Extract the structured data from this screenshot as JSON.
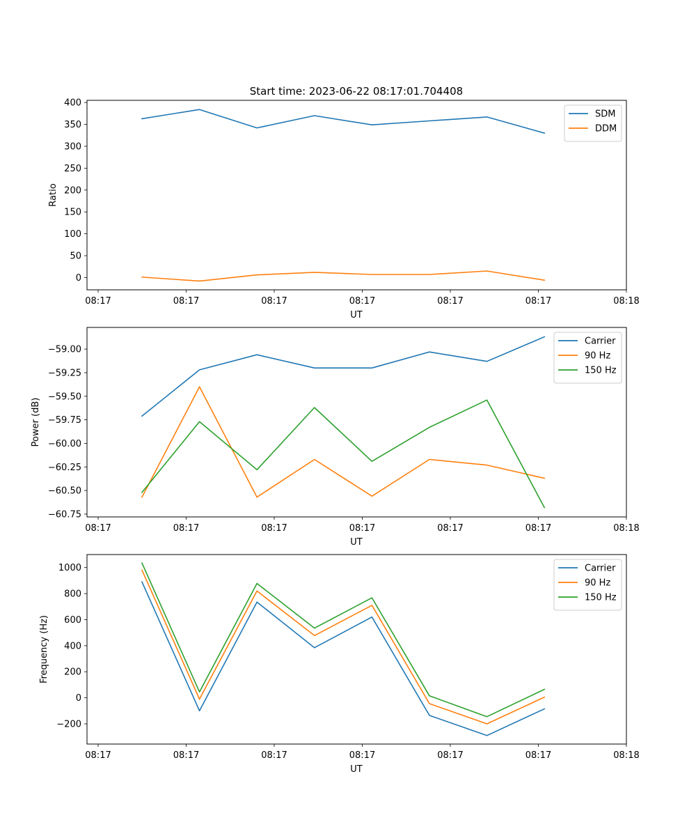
{
  "figure_title": "Start time: 2023-06-22 08:17:01.704408",
  "colors": {
    "blue": "#1f77b4",
    "orange": "#ff7f0e",
    "green": "#2ca02c"
  },
  "chart_data": [
    {
      "type": "line",
      "xlabel": "UT",
      "ylabel": "Ratio",
      "x_tick_labels": [
        "08:17",
        "08:17",
        "08:17",
        "08:17",
        "08:17",
        "08:17",
        "08:18"
      ],
      "y_ticks": [
        0,
        50,
        100,
        150,
        200,
        250,
        300,
        350,
        400
      ],
      "y_tick_labels": [
        "0",
        "50",
        "100",
        "150",
        "200",
        "250",
        "300",
        "350",
        "400"
      ],
      "ylim": [
        -28,
        405
      ],
      "legend_position": "upper right",
      "grid": false,
      "series": [
        {
          "name": "SDM",
          "color": "#1f77b4",
          "values": [
            363,
            384,
            342,
            370,
            349,
            358,
            367,
            330
          ]
        },
        {
          "name": "DDM",
          "color": "#ff7f0e",
          "values": [
            1,
            -8,
            6,
            12,
            7,
            7,
            15,
            -6
          ]
        }
      ]
    },
    {
      "type": "line",
      "xlabel": "UT",
      "ylabel": "Power (dB)",
      "x_tick_labels": [
        "08:17",
        "08:17",
        "08:17",
        "08:17",
        "08:17",
        "08:17",
        "08:18"
      ],
      "y_ticks": [
        -60.75,
        -60.5,
        -60.25,
        -60.0,
        -59.75,
        -59.5,
        -59.25,
        -59.0
      ],
      "y_tick_labels": [
        "−60.75",
        "−60.50",
        "−60.25",
        "−60.00",
        "−59.75",
        "−59.50",
        "−59.25",
        "−59.00"
      ],
      "ylim": [
        -60.78,
        -58.77
      ],
      "legend_position": "upper right",
      "grid": false,
      "series": [
        {
          "name": "Carrier",
          "color": "#1f77b4",
          "values": [
            -59.71,
            -59.22,
            -59.06,
            -59.2,
            -59.2,
            -59.03,
            -59.13,
            -58.87
          ]
        },
        {
          "name": "90 Hz",
          "color": "#ff7f0e",
          "values": [
            -60.57,
            -59.4,
            -60.57,
            -60.17,
            -60.56,
            -60.17,
            -60.23,
            -60.37
          ]
        },
        {
          "name": "150 Hz",
          "color": "#2ca02c",
          "values": [
            -60.52,
            -59.77,
            -60.28,
            -59.62,
            -60.19,
            -59.83,
            -59.54,
            -60.68
          ]
        }
      ]
    },
    {
      "type": "line",
      "xlabel": "UT",
      "ylabel": "Frequency (Hz)",
      "x_tick_labels": [
        "08:17",
        "08:17",
        "08:17",
        "08:17",
        "08:17",
        "08:17",
        "08:18"
      ],
      "y_ticks": [
        -200,
        0,
        200,
        400,
        600,
        800,
        1000
      ],
      "y_tick_labels": [
        "−200",
        "0",
        "200",
        "400",
        "600",
        "800",
        "1000"
      ],
      "ylim": [
        -355,
        1100
      ],
      "legend_position": "upper right",
      "grid": false,
      "series": [
        {
          "name": "Carrier",
          "color": "#1f77b4",
          "values": [
            890,
            -100,
            735,
            385,
            620,
            -135,
            -290,
            -85
          ]
        },
        {
          "name": "90 Hz",
          "color": "#ff7f0e",
          "values": [
            980,
            -10,
            820,
            478,
            710,
            -45,
            -200,
            5
          ]
        },
        {
          "name": "150 Hz",
          "color": "#2ca02c",
          "values": [
            1035,
            45,
            878,
            535,
            768,
            15,
            -145,
            65
          ]
        }
      ]
    }
  ]
}
